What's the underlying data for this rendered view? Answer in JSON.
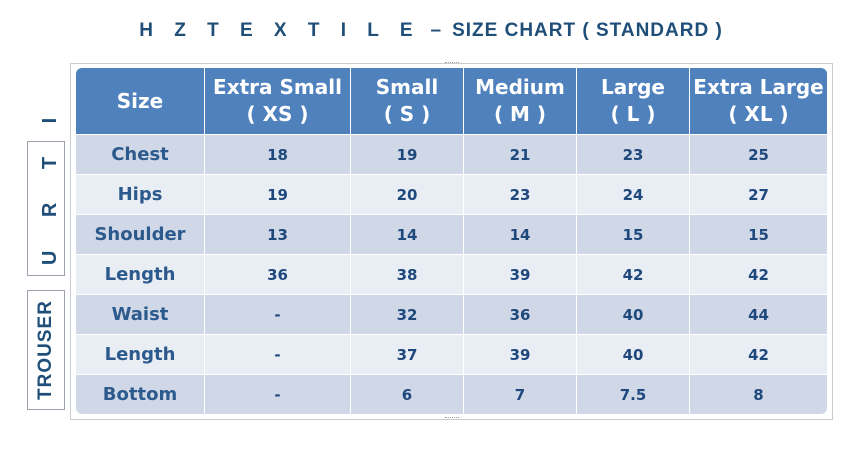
{
  "title": {
    "brand": "H Z  T E X T I L E",
    "separator": "–",
    "subtitle": "SIZE CHART ( STANDARD )"
  },
  "groups": {
    "kurti": "K U R T I",
    "trouser": "TROUSER"
  },
  "table": {
    "header": {
      "size": "Size",
      "xs": {
        "line1": "Extra Small",
        "line2": "( XS )"
      },
      "s": {
        "line1": "Small",
        "line2": "( S )"
      },
      "m": {
        "line1": "Medium",
        "line2": "( M )"
      },
      "l": {
        "line1": "Large",
        "line2": "( L )"
      },
      "xl": {
        "line1": "Extra Large",
        "line2": "( XL )"
      }
    },
    "rows": [
      {
        "label": "Chest",
        "values": [
          "18",
          "19",
          "21",
          "23",
          "25"
        ]
      },
      {
        "label": "Hips",
        "values": [
          "19",
          "20",
          "23",
          "24",
          "27"
        ]
      },
      {
        "label": "Shoulder",
        "values": [
          "13",
          "14",
          "14",
          "15",
          "15"
        ]
      },
      {
        "label": "Length",
        "values": [
          "36",
          "38",
          "39",
          "42",
          "42"
        ]
      },
      {
        "label": "Waist",
        "values": [
          "-",
          "32",
          "36",
          "40",
          "44"
        ]
      },
      {
        "label": "Length",
        "values": [
          "-",
          "37",
          "39",
          "40",
          "42"
        ]
      },
      {
        "label": "Bottom",
        "values": [
          "-",
          "6",
          "7",
          "7.5",
          "8"
        ]
      }
    ]
  },
  "colors": {
    "header_bg": "#4f81bd",
    "row_dark": "#d0d8e8",
    "row_light": "#e9edf4",
    "text": "#1f497d"
  }
}
